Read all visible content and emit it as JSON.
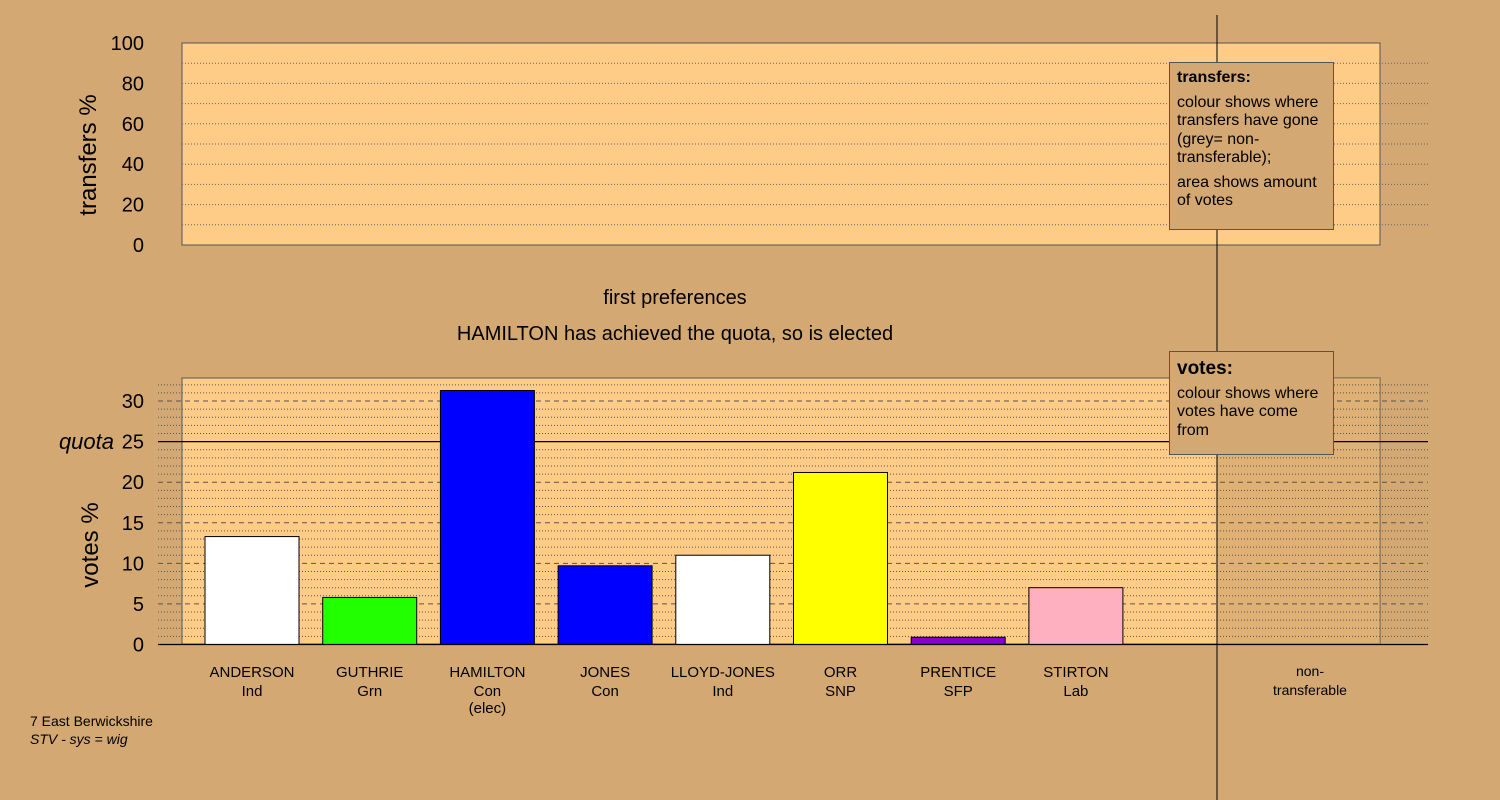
{
  "colors": {
    "background": "#d4a872",
    "panel": "#ffcc88",
    "shade": "#c59a66"
  },
  "top_panel": {
    "ylabel": "transfers %",
    "ticks": [
      "0",
      "20",
      "40",
      "60",
      "80",
      "100"
    ]
  },
  "subtitle": {
    "line1": "first preferences",
    "line2": "HAMILTON has achieved the quota, so is elected"
  },
  "legend_transfers": {
    "title": "transfers:",
    "text1": "colour shows where transfers have gone (grey= non-transferable);",
    "text2": "area shows amount of votes"
  },
  "legend_votes": {
    "title": "votes:",
    "text": "colour shows where votes have come from"
  },
  "bottom_panel": {
    "quota_label": "quota",
    "quota_value": "25"
  },
  "chart_data": [
    {
      "type": "bar",
      "ylabel": "transfers %",
      "ylim": [
        0,
        100
      ],
      "yticks": [
        0,
        20,
        40,
        60,
        80,
        100
      ],
      "values": []
    },
    {
      "type": "bar",
      "ylabel": "votes %",
      "ylim": [
        0,
        32
      ],
      "yticks": [
        0,
        5,
        10,
        15,
        20,
        25,
        30
      ],
      "quota": 25,
      "grid": true,
      "categories": [
        {
          "name": "ANDERSON",
          "party": "Ind",
          "note": ""
        },
        {
          "name": "GUTHRIE",
          "party": "Grn",
          "note": ""
        },
        {
          "name": "HAMILTON",
          "party": "Con",
          "note": "(elec)"
        },
        {
          "name": "JONES",
          "party": "Con",
          "note": ""
        },
        {
          "name": "LLOYD-JONES",
          "party": "Ind",
          "note": ""
        },
        {
          "name": "ORR",
          "party": "SNP",
          "note": ""
        },
        {
          "name": "PRENTICE",
          "party": "SFP",
          "note": ""
        },
        {
          "name": "STIRTON",
          "party": "Lab",
          "note": ""
        }
      ],
      "values": [
        13.3,
        5.8,
        31.3,
        9.7,
        11.0,
        21.2,
        0.9,
        7.0
      ],
      "colors": [
        "#ffffff",
        "#22ff00",
        "#0000ff",
        "#0000ff",
        "#ffffff",
        "#ffff00",
        "#8800cc",
        "#ffb0c0"
      ],
      "extra_category": {
        "line1": "non-",
        "line2": "transferable"
      }
    }
  ],
  "footer": {
    "place": "7 East Berwickshire",
    "system": "STV - sys = wig"
  }
}
